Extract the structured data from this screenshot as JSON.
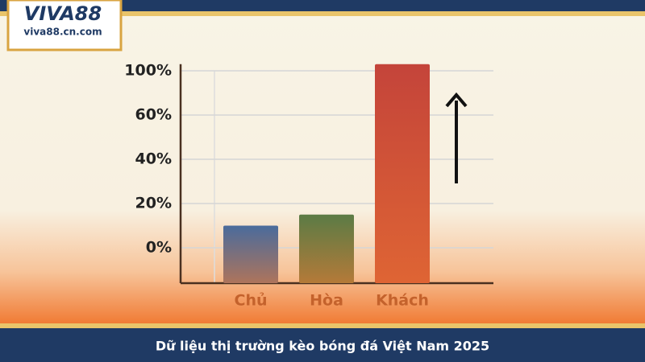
{
  "logo": {
    "brand": "VIVA88",
    "site": "viva88.cn.com"
  },
  "footer": {
    "caption": "Dữ liệu thị trường kèo bóng đá Việt Nam 2025"
  },
  "chart_data": {
    "type": "bar",
    "categories": [
      "Chủ",
      "Hòa",
      "Khách"
    ],
    "values": [
      10,
      15,
      106
    ],
    "colors": [
      "#4a6b9c",
      "#5b7b45",
      "#c4443a"
    ],
    "ylim": [
      -16,
      106
    ],
    "yticks": [
      {
        "value": 0,
        "label": "0%"
      },
      {
        "value": 20,
        "label": "20%"
      },
      {
        "value": 40,
        "label": "40%"
      },
      {
        "value": 60,
        "label": "60%"
      },
      {
        "value": 100,
        "label": "100%"
      }
    ],
    "grid": true
  }
}
